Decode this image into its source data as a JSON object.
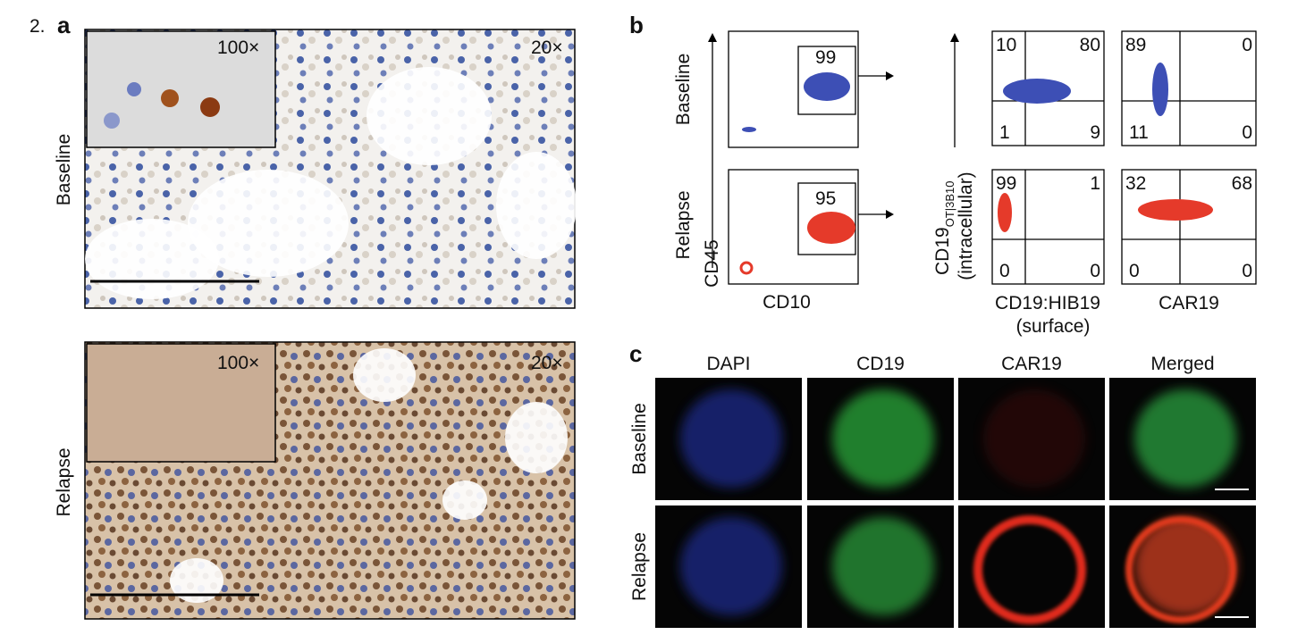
{
  "figure_number": "2.",
  "panel_a": {
    "label": "a",
    "rows": [
      {
        "label": "Baseline",
        "inset_magnification": "100×",
        "magnification": "20×"
      },
      {
        "label": "Relapse",
        "inset_magnification": "100×",
        "magnification": "20×"
      }
    ]
  },
  "panel_b": {
    "label": "b",
    "y_axis_left": "CD45",
    "x_axis_left": "CD10",
    "y_axis_right": "CD19",
    "y_axis_right_subscript": "OT|3B10",
    "y_axis_right_note": "(intracellular)",
    "x_axis_1": "CD19:HIB19",
    "x_axis_1_note": "(surface)",
    "x_axis_2": "CAR19",
    "rows": [
      {
        "label": "Baseline",
        "cd10_gate": 99,
        "cd19_quadrants": [
          10,
          80,
          1,
          9
        ],
        "car19_quadrants": [
          89,
          0,
          11,
          0
        ]
      },
      {
        "label": "Relapse",
        "cd10_gate": 95,
        "cd19_quadrants": [
          99,
          1,
          0,
          0
        ],
        "car19_quadrants": [
          32,
          68,
          0,
          0
        ]
      }
    ]
  },
  "panel_c": {
    "label": "c",
    "columns": [
      "DAPI",
      "CD19",
      "CAR19",
      "Merged"
    ],
    "rows": [
      "Baseline",
      "Relapse"
    ]
  }
}
